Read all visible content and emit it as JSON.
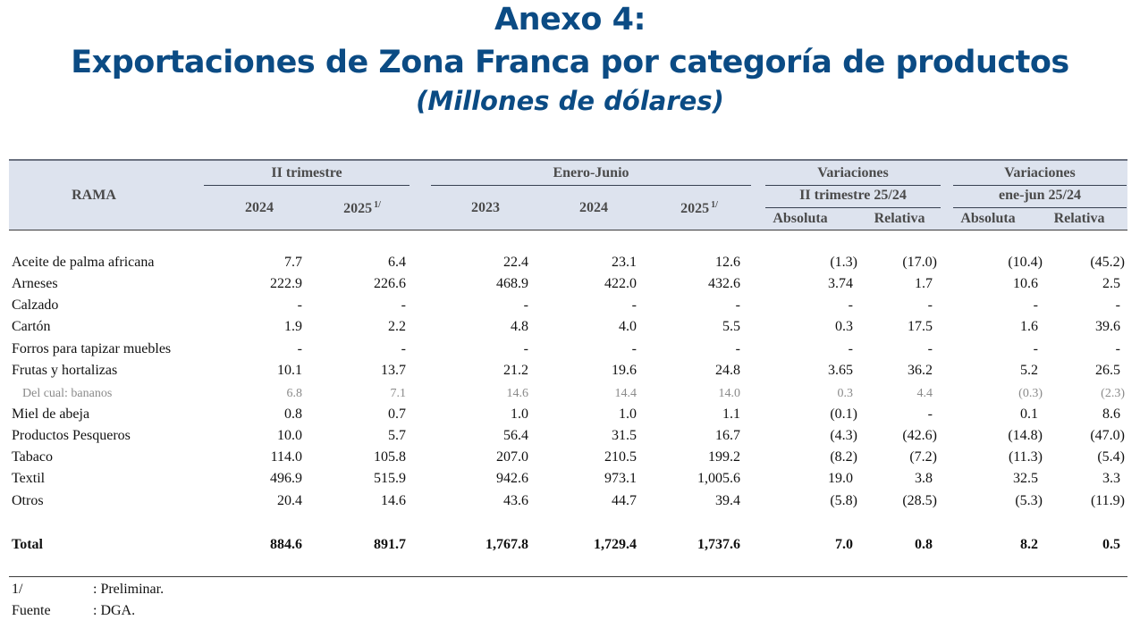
{
  "titles": {
    "line1": "Anexo 4:",
    "line2": "Exportaciones de Zona Franca por categoría de productos",
    "line3": "(Millones de dólares)"
  },
  "header": {
    "rama": "RAMA",
    "group_ii_trimestre": "II trimestre",
    "group_enero_junio": "Enero-Junio",
    "group_variaciones_1": "Variaciones",
    "group_variaciones_1_sub": "II trimestre 25/24",
    "group_variaciones_2": "Variaciones",
    "group_variaciones_2_sub": "ene-jun 25/24",
    "years": [
      "2024",
      "2025",
      "2023",
      "2024",
      "2025"
    ],
    "years_sup": [
      "",
      "1/",
      "",
      "",
      "1/"
    ],
    "var_cols": [
      "Absoluta",
      "Relativa",
      "Absoluta",
      "Relativa"
    ]
  },
  "rows": [
    {
      "label": "Aceite de palma africana",
      "style": "normal",
      "values": [
        "7.7",
        "6.4",
        "22.4",
        "23.1",
        "12.6",
        "(1.3)",
        "(17.0)",
        "(10.4)",
        "(45.2)"
      ]
    },
    {
      "label": "Arneses",
      "style": "normal",
      "values": [
        "222.9",
        "226.6",
        "468.9",
        "422.0",
        "432.6",
        "3.74",
        "1.7",
        "10.6",
        "2.5"
      ]
    },
    {
      "label": "Calzado",
      "style": "normal",
      "values": [
        "-",
        "-",
        "-",
        "-",
        "-",
        "-",
        "-",
        "-",
        "-"
      ]
    },
    {
      "label": "Cartón",
      "style": "normal",
      "values": [
        "1.9",
        "2.2",
        "4.8",
        "4.0",
        "5.5",
        "0.3",
        "17.5",
        "1.6",
        "39.6"
      ]
    },
    {
      "label": "Forros para tapizar muebles",
      "style": "normal",
      "values": [
        "-",
        "-",
        "-",
        "-",
        "-",
        "-",
        "-",
        "-",
        "-"
      ]
    },
    {
      "label": "Frutas y hortalizas",
      "style": "normal",
      "values": [
        "10.1",
        "13.7",
        "21.2",
        "19.6",
        "24.8",
        "3.65",
        "36.2",
        "5.2",
        "26.5"
      ]
    },
    {
      "label": "Del cual: bananos",
      "style": "sub",
      "values": [
        "6.8",
        "7.1",
        "14.6",
        "14.4",
        "14.0",
        "0.3",
        "4.4",
        "(0.3)",
        "(2.3)"
      ]
    },
    {
      "label": "Miel de abeja",
      "style": "normal",
      "values": [
        "0.8",
        "0.7",
        "1.0",
        "1.0",
        "1.1",
        "(0.1)",
        "-",
        "0.1",
        "8.6"
      ]
    },
    {
      "label": "Productos Pesqueros",
      "style": "normal",
      "values": [
        "10.0",
        "5.7",
        "56.4",
        "31.5",
        "16.7",
        "(4.3)",
        "(42.6)",
        "(14.8)",
        "(47.0)"
      ]
    },
    {
      "label": "Tabaco",
      "style": "normal",
      "values": [
        "114.0",
        "105.8",
        "207.0",
        "210.5",
        "199.2",
        "(8.2)",
        "(7.2)",
        "(11.3)",
        "(5.4)"
      ]
    },
    {
      "label": "Textil",
      "style": "normal",
      "values": [
        "496.9",
        "515.9",
        "942.6",
        "973.1",
        "1,005.6",
        "19.0",
        "3.8",
        "32.5",
        "3.3"
      ]
    },
    {
      "label": "Otros",
      "style": "normal",
      "values": [
        "20.4",
        "14.6",
        "43.6",
        "44.7",
        "39.4",
        "(5.8)",
        "(28.5)",
        "(5.3)",
        "(11.9)"
      ]
    }
  ],
  "total": {
    "label": "Total",
    "values": [
      "884.6",
      "891.7",
      "1,767.8",
      "1,729.4",
      "1,737.6",
      "7.0",
      "0.8",
      "8.2",
      "0.5"
    ]
  },
  "notes": [
    {
      "key": "1/",
      "text": ": Preliminar."
    },
    {
      "key": "Fuente",
      "text": ": DGA."
    }
  ]
}
